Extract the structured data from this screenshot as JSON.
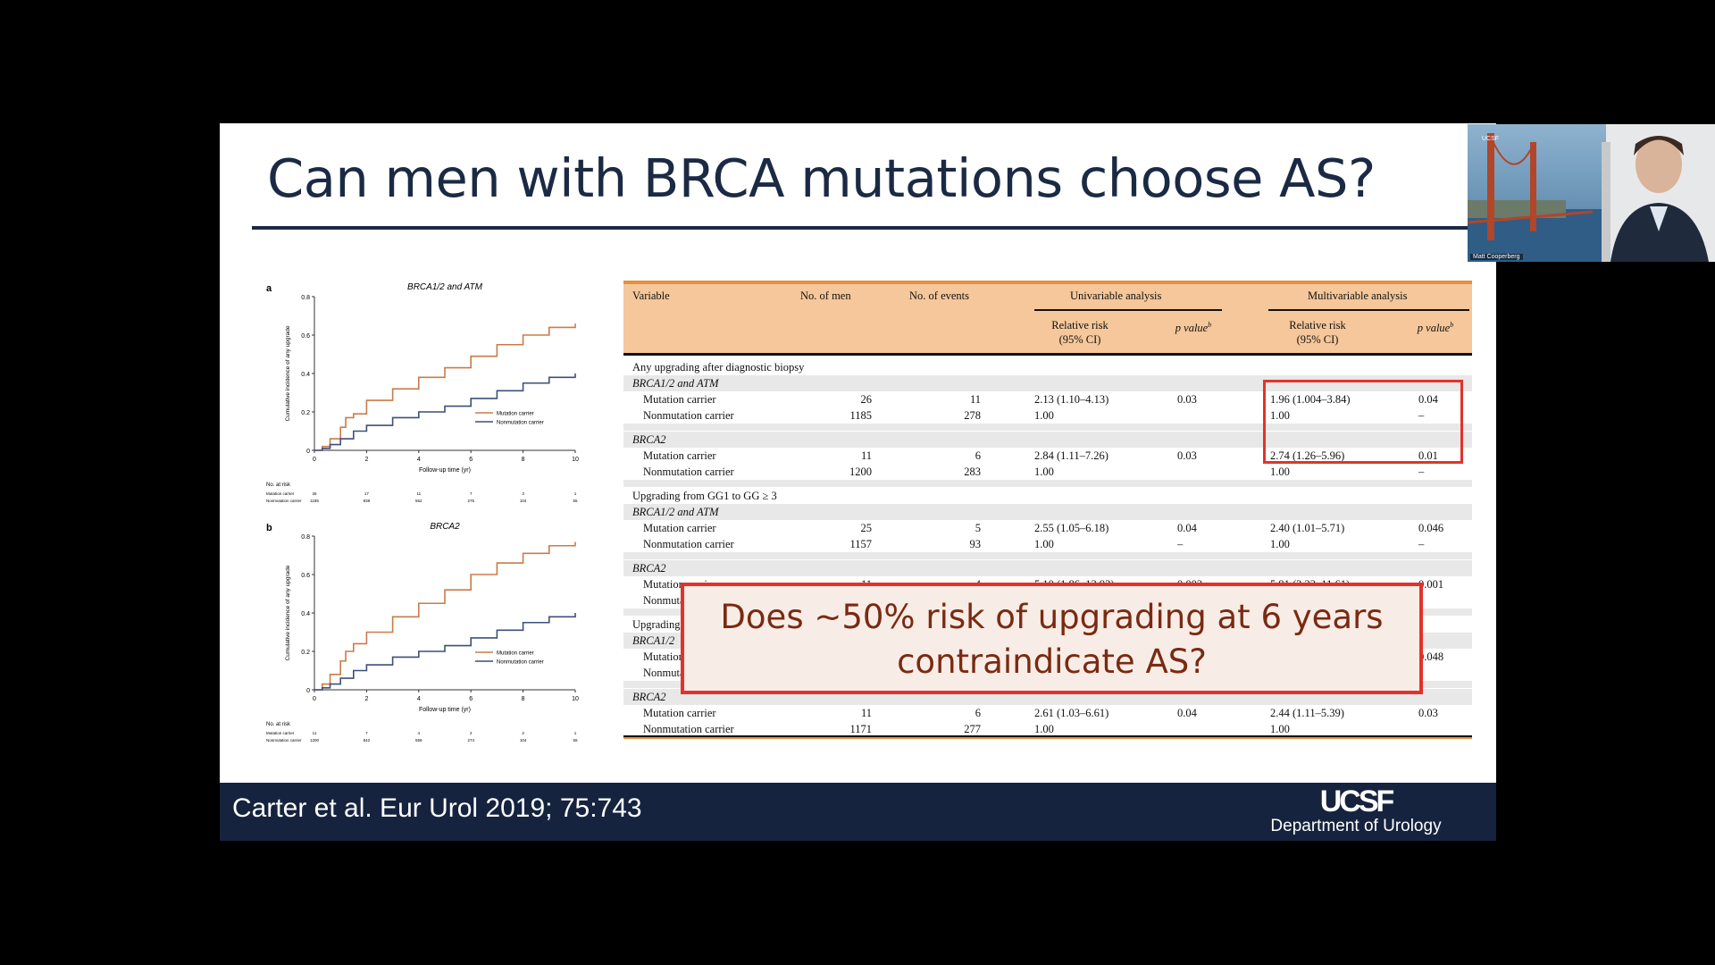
{
  "slide": {
    "title": "Can men with BRCA mutations choose AS?",
    "citation": "Carter et al. Eur Urol 2019; 75:743",
    "logo": {
      "mark": "UCSF",
      "department": "Department of Urology"
    },
    "callout": {
      "line1": "Does ~50% risk of upgrading at 6 years",
      "line2": "contraindicate AS?"
    }
  },
  "chart_data": [
    {
      "type": "line",
      "panel": "a",
      "title": "BRCA1/2 and ATM",
      "xlabel": "Follow-up time (yr)",
      "ylabel": "Cumulative incidence of any upgrade",
      "xlim": [
        0,
        10
      ],
      "ylim": [
        0,
        0.8
      ],
      "xticks": [
        "0",
        "2",
        "4",
        "6",
        "8",
        "10"
      ],
      "yticks": [
        "0",
        "0.2",
        "0.4",
        "0.6",
        "0.8"
      ],
      "legend": "bottom-right",
      "series": [
        {
          "name": "Mutation carrier",
          "color": "#c97b4a",
          "x": [
            0,
            0.3,
            0.6,
            1,
            1.2,
            1.5,
            2,
            3,
            4,
            5,
            6,
            7,
            8,
            9,
            10
          ],
          "y": [
            0,
            0.02,
            0.06,
            0.12,
            0.17,
            0.19,
            0.26,
            0.32,
            0.38,
            0.43,
            0.49,
            0.55,
            0.6,
            0.64,
            0.66
          ]
        },
        {
          "name": "Nonmutation carrier",
          "color": "#3f4f78",
          "x": [
            0,
            0.3,
            0.6,
            1,
            1.5,
            2,
            3,
            4,
            5,
            6,
            7,
            8,
            9,
            10
          ],
          "y": [
            0,
            0.01,
            0.03,
            0.06,
            0.1,
            0.13,
            0.17,
            0.2,
            0.23,
            0.27,
            0.31,
            0.35,
            0.38,
            0.4
          ]
        }
      ],
      "risk_table": {
        "label": "No. at risk",
        "rows": [
          {
            "name": "Mutation carrier",
            "values": [
              "26",
              "17",
              "11",
              "7",
              "3",
              "1"
            ]
          },
          {
            "name": "Nonmutation carrier",
            "values": [
              "1185",
              "838",
              "552",
              "275",
              "104",
              "55"
            ]
          }
        ]
      }
    },
    {
      "type": "line",
      "panel": "b",
      "title": "BRCA2",
      "xlabel": "Follow-up time (yr)",
      "ylabel": "Cumulative incidence of any upgrade",
      "xlim": [
        0,
        10
      ],
      "ylim": [
        0,
        0.8
      ],
      "xticks": [
        "0",
        "2",
        "4",
        "6",
        "8",
        "10"
      ],
      "yticks": [
        "0",
        "0.2",
        "0.4",
        "0.6",
        "0.8"
      ],
      "legend": "bottom-right",
      "series": [
        {
          "name": "Mutation carrier",
          "color": "#c97b4a",
          "x": [
            0,
            0.3,
            0.6,
            1,
            1.2,
            1.5,
            2,
            3,
            4,
            5,
            6,
            7,
            8,
            9,
            10
          ],
          "y": [
            0,
            0.03,
            0.08,
            0.15,
            0.2,
            0.24,
            0.3,
            0.38,
            0.45,
            0.52,
            0.6,
            0.66,
            0.71,
            0.75,
            0.77
          ]
        },
        {
          "name": "Nonmutation carrier",
          "color": "#3f4f78",
          "x": [
            0,
            0.3,
            0.6,
            1,
            1.5,
            2,
            3,
            4,
            5,
            6,
            7,
            8,
            9,
            10
          ],
          "y": [
            0,
            0.01,
            0.03,
            0.06,
            0.1,
            0.13,
            0.17,
            0.2,
            0.23,
            0.27,
            0.31,
            0.35,
            0.38,
            0.4
          ]
        }
      ],
      "risk_table": {
        "label": "No. at risk",
        "rows": [
          {
            "name": "Mutation carrier",
            "values": [
              "11",
              "7",
              "4",
              "2",
              "2",
              "1"
            ]
          },
          {
            "name": "Nonmutation carrier",
            "values": [
              "1200",
              "842",
              "559",
              "274",
              "104",
              "55"
            ]
          }
        ]
      }
    }
  ],
  "table": {
    "headers": {
      "variable": "Variable",
      "men": "No. of men",
      "events": "No. of events",
      "univariable": "Univariable analysis",
      "multivariable": "Multivariable analysis",
      "rr": "Relative risk",
      "ci": "(95% CI)",
      "p": "p value",
      "p_sup": "b"
    },
    "rows": [
      {
        "kind": "section",
        "label": "Any upgrading after diagnostic biopsy"
      },
      {
        "kind": "group",
        "label": "BRCA1/2 and ATM"
      },
      {
        "kind": "data",
        "label": "Mutation carrier",
        "men": "26",
        "events": "11",
        "u_rr": "2.13 (1.10–4.13)",
        "u_p": "0.03",
        "m_rr": "1.96 (1.004–3.84)",
        "m_p": "0.04"
      },
      {
        "kind": "data",
        "label": "Nonmutation carrier",
        "men": "1185",
        "events": "278",
        "u_rr": "1.00",
        "u_p": "",
        "m_rr": "1.00",
        "m_p": "–"
      },
      {
        "kind": "spacer"
      },
      {
        "kind": "group",
        "label": "BRCA2"
      },
      {
        "kind": "data",
        "label": "Mutation carrier",
        "men": "11",
        "events": "6",
        "u_rr": "2.84 (1.11–7.26)",
        "u_p": "0.03",
        "m_rr": "2.74 (1.26–5.96)",
        "m_p": "0.01"
      },
      {
        "kind": "data",
        "label": "Nonmutation carrier",
        "men": "1200",
        "events": "283",
        "u_rr": "1.00",
        "u_p": "",
        "m_rr": "1.00",
        "m_p": "–"
      },
      {
        "kind": "spacer"
      },
      {
        "kind": "section",
        "label": "Upgrading from GG1 to GG ≥ 3"
      },
      {
        "kind": "group",
        "label": "BRCA1/2 and ATM"
      },
      {
        "kind": "data",
        "label": "Mutation carrier",
        "men": "25",
        "events": "5",
        "u_rr": "2.55 (1.05–6.18)",
        "u_p": "0.04",
        "m_rr": "2.40 (1.01–5.71)",
        "m_p": "0.046"
      },
      {
        "kind": "data",
        "label": "Nonmutation carrier",
        "men": "1157",
        "events": "93",
        "u_rr": "1.00",
        "u_p": "–",
        "m_rr": "1.00",
        "m_p": "–"
      },
      {
        "kind": "spacer"
      },
      {
        "kind": "group",
        "label": "BRCA2"
      },
      {
        "kind": "data",
        "label": "Mutation carrier",
        "men": "11",
        "events": "4",
        "u_rr": "5.10 (1.86–13.93)",
        "u_p": "0.002",
        "m_rr": "5.91 (2.22–11.61)",
        "m_p": "0.001"
      },
      {
        "kind": "data",
        "label": "Nonmutation carrier",
        "men": "",
        "events": "",
        "u_rr": "",
        "u_p": "",
        "m_rr": "",
        "m_p": ""
      },
      {
        "kind": "spacer"
      },
      {
        "kind": "section",
        "label": "Upgrading"
      },
      {
        "kind": "group",
        "label": "BRCA1/2"
      },
      {
        "kind": "data",
        "label": "Mutation carrier",
        "men": "",
        "events": "",
        "u_rr": "",
        "u_p": "",
        "m_rr": "",
        "m_p": "0.048"
      },
      {
        "kind": "data",
        "label": "Nonmutation carrier",
        "men": "",
        "events": "",
        "u_rr": "",
        "u_p": "",
        "m_rr": "",
        "m_p": ""
      },
      {
        "kind": "spacer"
      },
      {
        "kind": "group",
        "label": "BRCA2"
      },
      {
        "kind": "data",
        "label": "Mutation carrier",
        "men": "11",
        "events": "6",
        "u_rr": "2.61 (1.03–6.61)",
        "u_p": "0.04",
        "m_rr": "2.44 (1.11–5.39)",
        "m_p": "0.03"
      },
      {
        "kind": "data",
        "label": "Nonmutation carrier",
        "men": "1171",
        "events": "277",
        "u_rr": "1.00",
        "u_p": "",
        "m_rr": "1.00",
        "m_p": ""
      }
    ]
  },
  "webcam": {
    "participant": "Matt Cooperberg",
    "tag": "UCSF"
  },
  "colors": {
    "accent": "#e3322b",
    "header_bg": "#f5c79a",
    "header_rule": "#e39142",
    "navy": "#16233f"
  }
}
